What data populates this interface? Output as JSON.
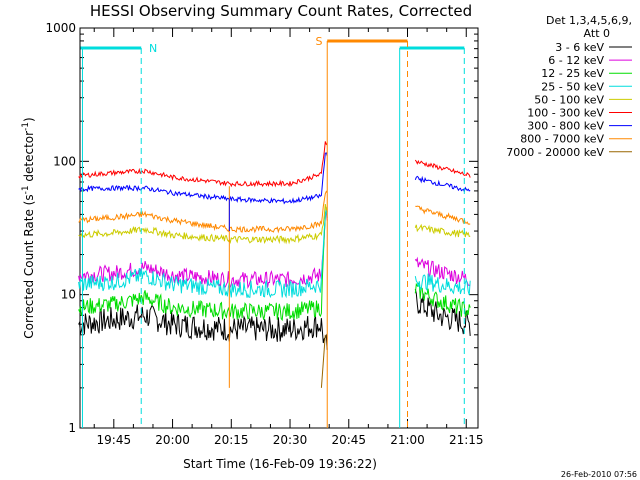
{
  "chart_data": {
    "type": "line",
    "title": "HESSI Observing Summary Count Rates, Corrected",
    "xlabel": "Start Time (16-Feb-09 19:36:22)",
    "ylabel": "Corrected Count Rate (s",
    "ylabel_sup1": "-1",
    "ylabel_mid": " detector",
    "ylabel_sup2": "-1",
    "ylabel_end": ")",
    "y_scale": "log",
    "ylim": [
      1,
      1000
    ],
    "xlim": [
      "19:36:22",
      "21:18:00"
    ],
    "x_tick_labels": [
      "19:45",
      "20:00",
      "20:15",
      "20:30",
      "20:45",
      "21:00",
      "21:15"
    ],
    "y_tick_labels": [
      "1",
      "10",
      "100",
      "1000"
    ],
    "legend_header": [
      "Det 1,3,4,5,6,9,",
      "Att 0"
    ],
    "legend_position": "right-top",
    "data_gaps": [
      [
        "20:39:30",
        "21:02:00"
      ]
    ],
    "series": [
      {
        "name": "3 - 6 keV",
        "color": "#000000",
        "x": [
          "19:36",
          "19:45",
          "19:53",
          "20:00",
          "20:15",
          "20:30",
          "20:38",
          "20:39",
          "21:02",
          "21:08",
          "21:16"
        ],
        "y": [
          6,
          6.5,
          7,
          6,
          5.5,
          5.5,
          6,
          4,
          9,
          7,
          6
        ]
      },
      {
        "name": "6 - 12 keV",
        "color": "#dd00dd",
        "x": [
          "19:36",
          "19:45",
          "19:53",
          "20:00",
          "20:15",
          "20:30",
          "20:38",
          "20:39",
          "21:02",
          "21:08",
          "21:16"
        ],
        "y": [
          14,
          14.5,
          16,
          14,
          13,
          13,
          14,
          40,
          17,
          15,
          13
        ]
      },
      {
        "name": "12 - 25 keV",
        "color": "#00dd00",
        "x": [
          "19:36",
          "19:45",
          "19:53",
          "20:00",
          "20:15",
          "20:30",
          "20:38",
          "20:39",
          "21:02",
          "21:08",
          "21:16"
        ],
        "y": [
          8,
          8.5,
          9.5,
          8,
          7.5,
          7.5,
          8,
          40,
          11,
          9,
          7.5
        ]
      },
      {
        "name": "25 - 50 keV",
        "color": "#00dddd",
        "x": [
          "19:36",
          "19:45",
          "19:53",
          "20:00",
          "20:15",
          "20:30",
          "20:38",
          "20:39",
          "21:02",
          "21:08",
          "21:16"
        ],
        "y": [
          12,
          12.5,
          14,
          12,
          11,
          11,
          12,
          40,
          13,
          12,
          11
        ]
      },
      {
        "name": "50 - 100 keV",
        "color": "#cccc00",
        "x": [
          "19:36",
          "19:45",
          "19:53",
          "20:00",
          "20:15",
          "20:30",
          "20:38",
          "20:39",
          "21:02",
          "21:08",
          "21:16"
        ],
        "y": [
          28,
          29,
          31,
          28,
          26,
          26,
          28,
          45,
          32,
          30,
          28
        ]
      },
      {
        "name": "100 - 300 keV",
        "color": "#ff0000",
        "x": [
          "19:36",
          "19:45",
          "19:53",
          "20:00",
          "20:15",
          "20:30",
          "20:38",
          "20:39",
          "21:02",
          "21:08",
          "21:16"
        ],
        "y": [
          78,
          82,
          85,
          76,
          68,
          68,
          80,
          140,
          100,
          90,
          78
        ]
      },
      {
        "name": "300 - 800 keV",
        "color": "#0000ff",
        "x": [
          "19:36",
          "19:45",
          "19:53",
          "20:00",
          "20:15",
          "20:30",
          "20:38",
          "20:39",
          "21:02",
          "21:08",
          "21:16"
        ],
        "y": [
          62,
          63,
          63,
          58,
          52,
          50,
          55,
          115,
          75,
          68,
          60
        ]
      },
      {
        "name": "800 - 7000 keV",
        "color": "#ff8800",
        "x": [
          "19:36",
          "19:45",
          "19:53",
          "20:00",
          "20:15",
          "20:30",
          "20:38",
          "20:39",
          "21:02",
          "21:08",
          "21:16"
        ],
        "y": [
          36,
          38,
          40,
          36,
          31,
          31,
          34,
          60,
          45,
          40,
          35
        ]
      },
      {
        "name": "7000 - 20000 keV",
        "color": "#996600",
        "x": [
          "20:38",
          "20:39"
        ],
        "y": [
          2,
          5
        ]
      }
    ],
    "annotations": [
      {
        "text": "N",
        "color": "#00dddd"
      },
      {
        "text": "S",
        "color": "#ff8800"
      }
    ]
  },
  "timestamp": "26-Feb-2010 07:56"
}
